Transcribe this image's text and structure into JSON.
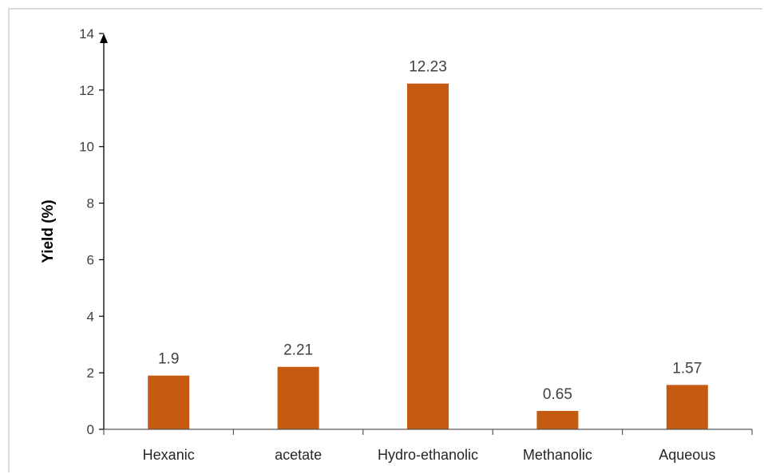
{
  "chart_data": {
    "type": "bar",
    "categories": [
      "Hexanic",
      "acetate",
      "Hydro-ethanolic",
      "Methanolic",
      "Aqueous"
    ],
    "values": [
      1.9,
      2.21,
      12.23,
      0.65,
      1.57
    ],
    "data_labels": [
      "1.9",
      "2.21",
      "12.23",
      "0.65",
      "1.57"
    ],
    "title": "",
    "xlabel": "",
    "ylabel": "Yield (%)",
    "ylim": [
      0,
      14
    ],
    "yticks": [
      0,
      2,
      4,
      6,
      8,
      10,
      12,
      14
    ],
    "grid": false,
    "legend": "none",
    "bar_color": "#c55a11"
  }
}
